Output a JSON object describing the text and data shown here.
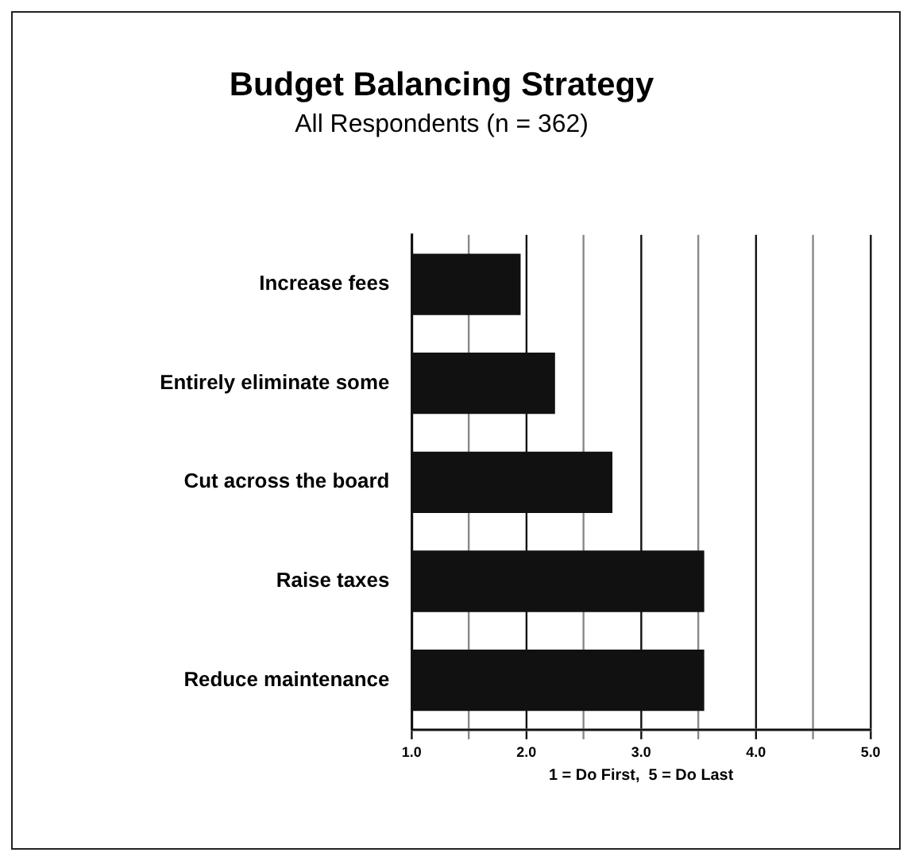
{
  "chart_data": {
    "type": "bar",
    "orientation": "horizontal",
    "title": "Budget Balancing Strategy",
    "subtitle": "All Respondents (n = 362)",
    "xlabel": "1 = Do First,  5 = Do Last",
    "categories": [
      "Increase fees",
      "Entirely eliminate some",
      "Cut across the board",
      "Raise taxes",
      "Reduce maintenance"
    ],
    "values": [
      1.95,
      2.25,
      2.75,
      3.55,
      3.55
    ],
    "color": "#111111",
    "xlim": [
      1,
      5
    ],
    "xticks": [
      {
        "value": 1,
        "label": "1.0"
      },
      {
        "value": 1.5,
        "label": null
      },
      {
        "value": 2,
        "label": "2.0"
      },
      {
        "value": 2.5,
        "label": null
      },
      {
        "value": 3,
        "label": "3.0"
      },
      {
        "value": 3.5,
        "label": null
      },
      {
        "value": 4,
        "label": "4.0"
      },
      {
        "value": 4.5,
        "label": null
      },
      {
        "value": 5,
        "label": "5.0"
      }
    ],
    "grid": "x",
    "legend": false
  }
}
